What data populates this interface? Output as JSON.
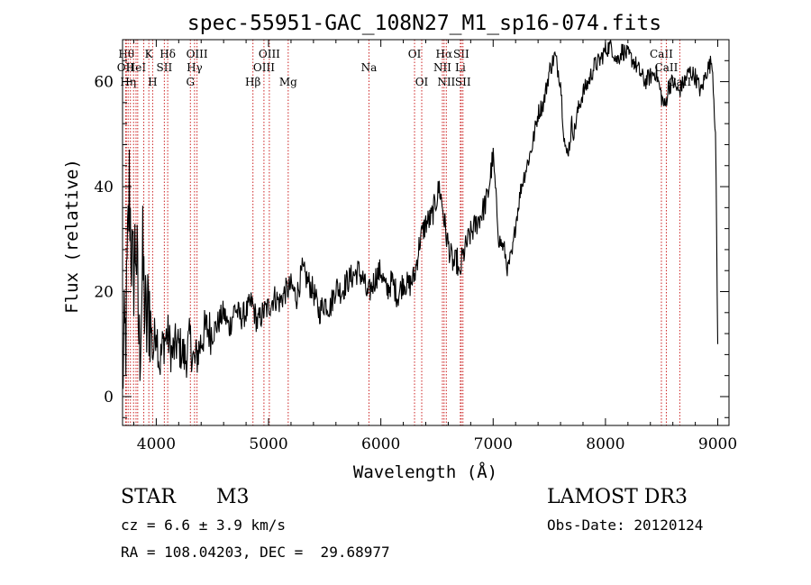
{
  "colors": {
    "spectrum": "#000000",
    "line_marker": "#cc2222",
    "axis": "#000000",
    "background": "#ffffff"
  },
  "chart_data": {
    "type": "line",
    "title": "spec-55951-GAC_108N27_M1_sp16-074.fits",
    "xlabel": "Wavelength (Å)",
    "ylabel": "Flux (relative)",
    "xlim": [
      3700,
      9100
    ],
    "ylim": [
      -5.5,
      68
    ],
    "xticks": [
      4000,
      5000,
      6000,
      7000,
      8000,
      9000
    ],
    "xtick_labels": [
      "4000",
      "5000",
      "6000",
      "7000",
      "8000",
      "9000"
    ],
    "yticks": [
      0,
      20,
      40,
      60
    ],
    "ytick_labels": [
      "0",
      "20",
      "40",
      "60"
    ],
    "series": [
      {
        "name": "flux",
        "x": [
          3700,
          3730,
          3760,
          3790,
          3820,
          3850,
          3880,
          3910,
          3940,
          3970,
          4000,
          4030,
          4060,
          4100,
          4140,
          4180,
          4220,
          4260,
          4300,
          4340,
          4380,
          4420,
          4460,
          4500,
          4550,
          4600,
          4650,
          4700,
          4750,
          4800,
          4850,
          4900,
          4950,
          5000,
          5050,
          5100,
          5150,
          5200,
          5250,
          5300,
          5350,
          5400,
          5450,
          5500,
          5550,
          5600,
          5650,
          5700,
          5750,
          5800,
          5850,
          5880,
          5920,
          5960,
          6000,
          6050,
          6100,
          6150,
          6200,
          6250,
          6300,
          6350,
          6400,
          6450,
          6500,
          6520,
          6550,
          6580,
          6600,
          6620,
          6650,
          6680,
          6700,
          6720,
          6750,
          6780,
          6800,
          6850,
          6900,
          6950,
          7000,
          7050,
          7100,
          7130,
          7150,
          7170,
          7200,
          7250,
          7300,
          7350,
          7400,
          7450,
          7500,
          7550,
          7600,
          7630,
          7650,
          7680,
          7700,
          7720,
          7750,
          7800,
          7850,
          7900,
          7950,
          8000,
          8050,
          8100,
          8150,
          8200,
          8250,
          8300,
          8350,
          8400,
          8450,
          8500,
          8530,
          8560,
          8600,
          8650,
          8700,
          8750,
          8800,
          8850,
          8900,
          8950,
          8980,
          9000
        ],
        "y": [
          5,
          12,
          40,
          22,
          30,
          8,
          25,
          12,
          18,
          8,
          14,
          6,
          10,
          12,
          8,
          10,
          9,
          7,
          11,
          6,
          9,
          12,
          13,
          12,
          14,
          16,
          13,
          17,
          15,
          16,
          18,
          14,
          16,
          17,
          19,
          18,
          20,
          21,
          19,
          24,
          22,
          20,
          16,
          18,
          17,
          21,
          20,
          22,
          23,
          24,
          22,
          19,
          21,
          23,
          24,
          20,
          22,
          19,
          22,
          21,
          23,
          30,
          33,
          34,
          38,
          40,
          36,
          31,
          29,
          27,
          25,
          26,
          22,
          26,
          28,
          30,
          31,
          33,
          35,
          38,
          46,
          30,
          28,
          24,
          26,
          27,
          33,
          40,
          44,
          48,
          54,
          56,
          62,
          65,
          60,
          50,
          46,
          48,
          52,
          50,
          54,
          58,
          60,
          63,
          64,
          66,
          67,
          64,
          66,
          65,
          64,
          62,
          60,
          61,
          62,
          57,
          55,
          59,
          60,
          58,
          60,
          62,
          61,
          58,
          62,
          64,
          50,
          10
        ]
      }
    ],
    "line_markers": [
      {
        "wavelength": 3734,
        "label": "Hθ",
        "row": 1
      },
      {
        "wavelength": 3727,
        "label": "OII",
        "row": 2
      },
      {
        "wavelength": 3750,
        "label": "Hη",
        "row": 3
      },
      {
        "wavelength": 3770,
        "label": "",
        "row": 0
      },
      {
        "wavelength": 3798,
        "label": "",
        "row": 0
      },
      {
        "wavelength": 3820,
        "label": "HeI",
        "row": 2
      },
      {
        "wavelength": 3835,
        "label": "",
        "row": 0
      },
      {
        "wavelength": 3889,
        "label": "",
        "row": 0
      },
      {
        "wavelength": 3934,
        "label": "K",
        "row": 1
      },
      {
        "wavelength": 3968,
        "label": "H",
        "row": 3
      },
      {
        "wavelength": 4072,
        "label": "SII",
        "row": 2
      },
      {
        "wavelength": 4102,
        "label": "Hδ",
        "row": 1
      },
      {
        "wavelength": 4304,
        "label": "G",
        "row": 3
      },
      {
        "wavelength": 4341,
        "label": "Hγ",
        "row": 2
      },
      {
        "wavelength": 4363,
        "label": "OIII",
        "row": 1
      },
      {
        "wavelength": 4861,
        "label": "Hβ",
        "row": 3
      },
      {
        "wavelength": 4959,
        "label": "OIII",
        "row": 2
      },
      {
        "wavelength": 5007,
        "label": "OIII",
        "row": 1
      },
      {
        "wavelength": 5175,
        "label": "Mg",
        "row": 3
      },
      {
        "wavelength": 5894,
        "label": "Na",
        "row": 2
      },
      {
        "wavelength": 6300,
        "label": "OI",
        "row": 1
      },
      {
        "wavelength": 6364,
        "label": "OI",
        "row": 3
      },
      {
        "wavelength": 6548,
        "label": "NII",
        "row": 2
      },
      {
        "wavelength": 6563,
        "label": "Hα",
        "row": 1
      },
      {
        "wavelength": 6583,
        "label": "NII",
        "row": 3
      },
      {
        "wavelength": 6708,
        "label": "Li",
        "row": 2
      },
      {
        "wavelength": 6716,
        "label": "SII",
        "row": 1
      },
      {
        "wavelength": 6731,
        "label": "SII",
        "row": 3
      },
      {
        "wavelength": 8498,
        "label": "CaII",
        "row": 1
      },
      {
        "wavelength": 8542,
        "label": "CaII",
        "row": 2
      },
      {
        "wavelength": 8662,
        "label": "CaII",
        "row": 3
      }
    ]
  },
  "info": {
    "object_type": "STAR",
    "subclass": "M3",
    "survey": "LAMOST DR3",
    "cz_text": "cz = 6.6 ± 3.9 km/s",
    "obs_date_text": "Obs-Date: 20120124",
    "coords_text": "RA = 108.04203, DEC =  29.68977"
  }
}
